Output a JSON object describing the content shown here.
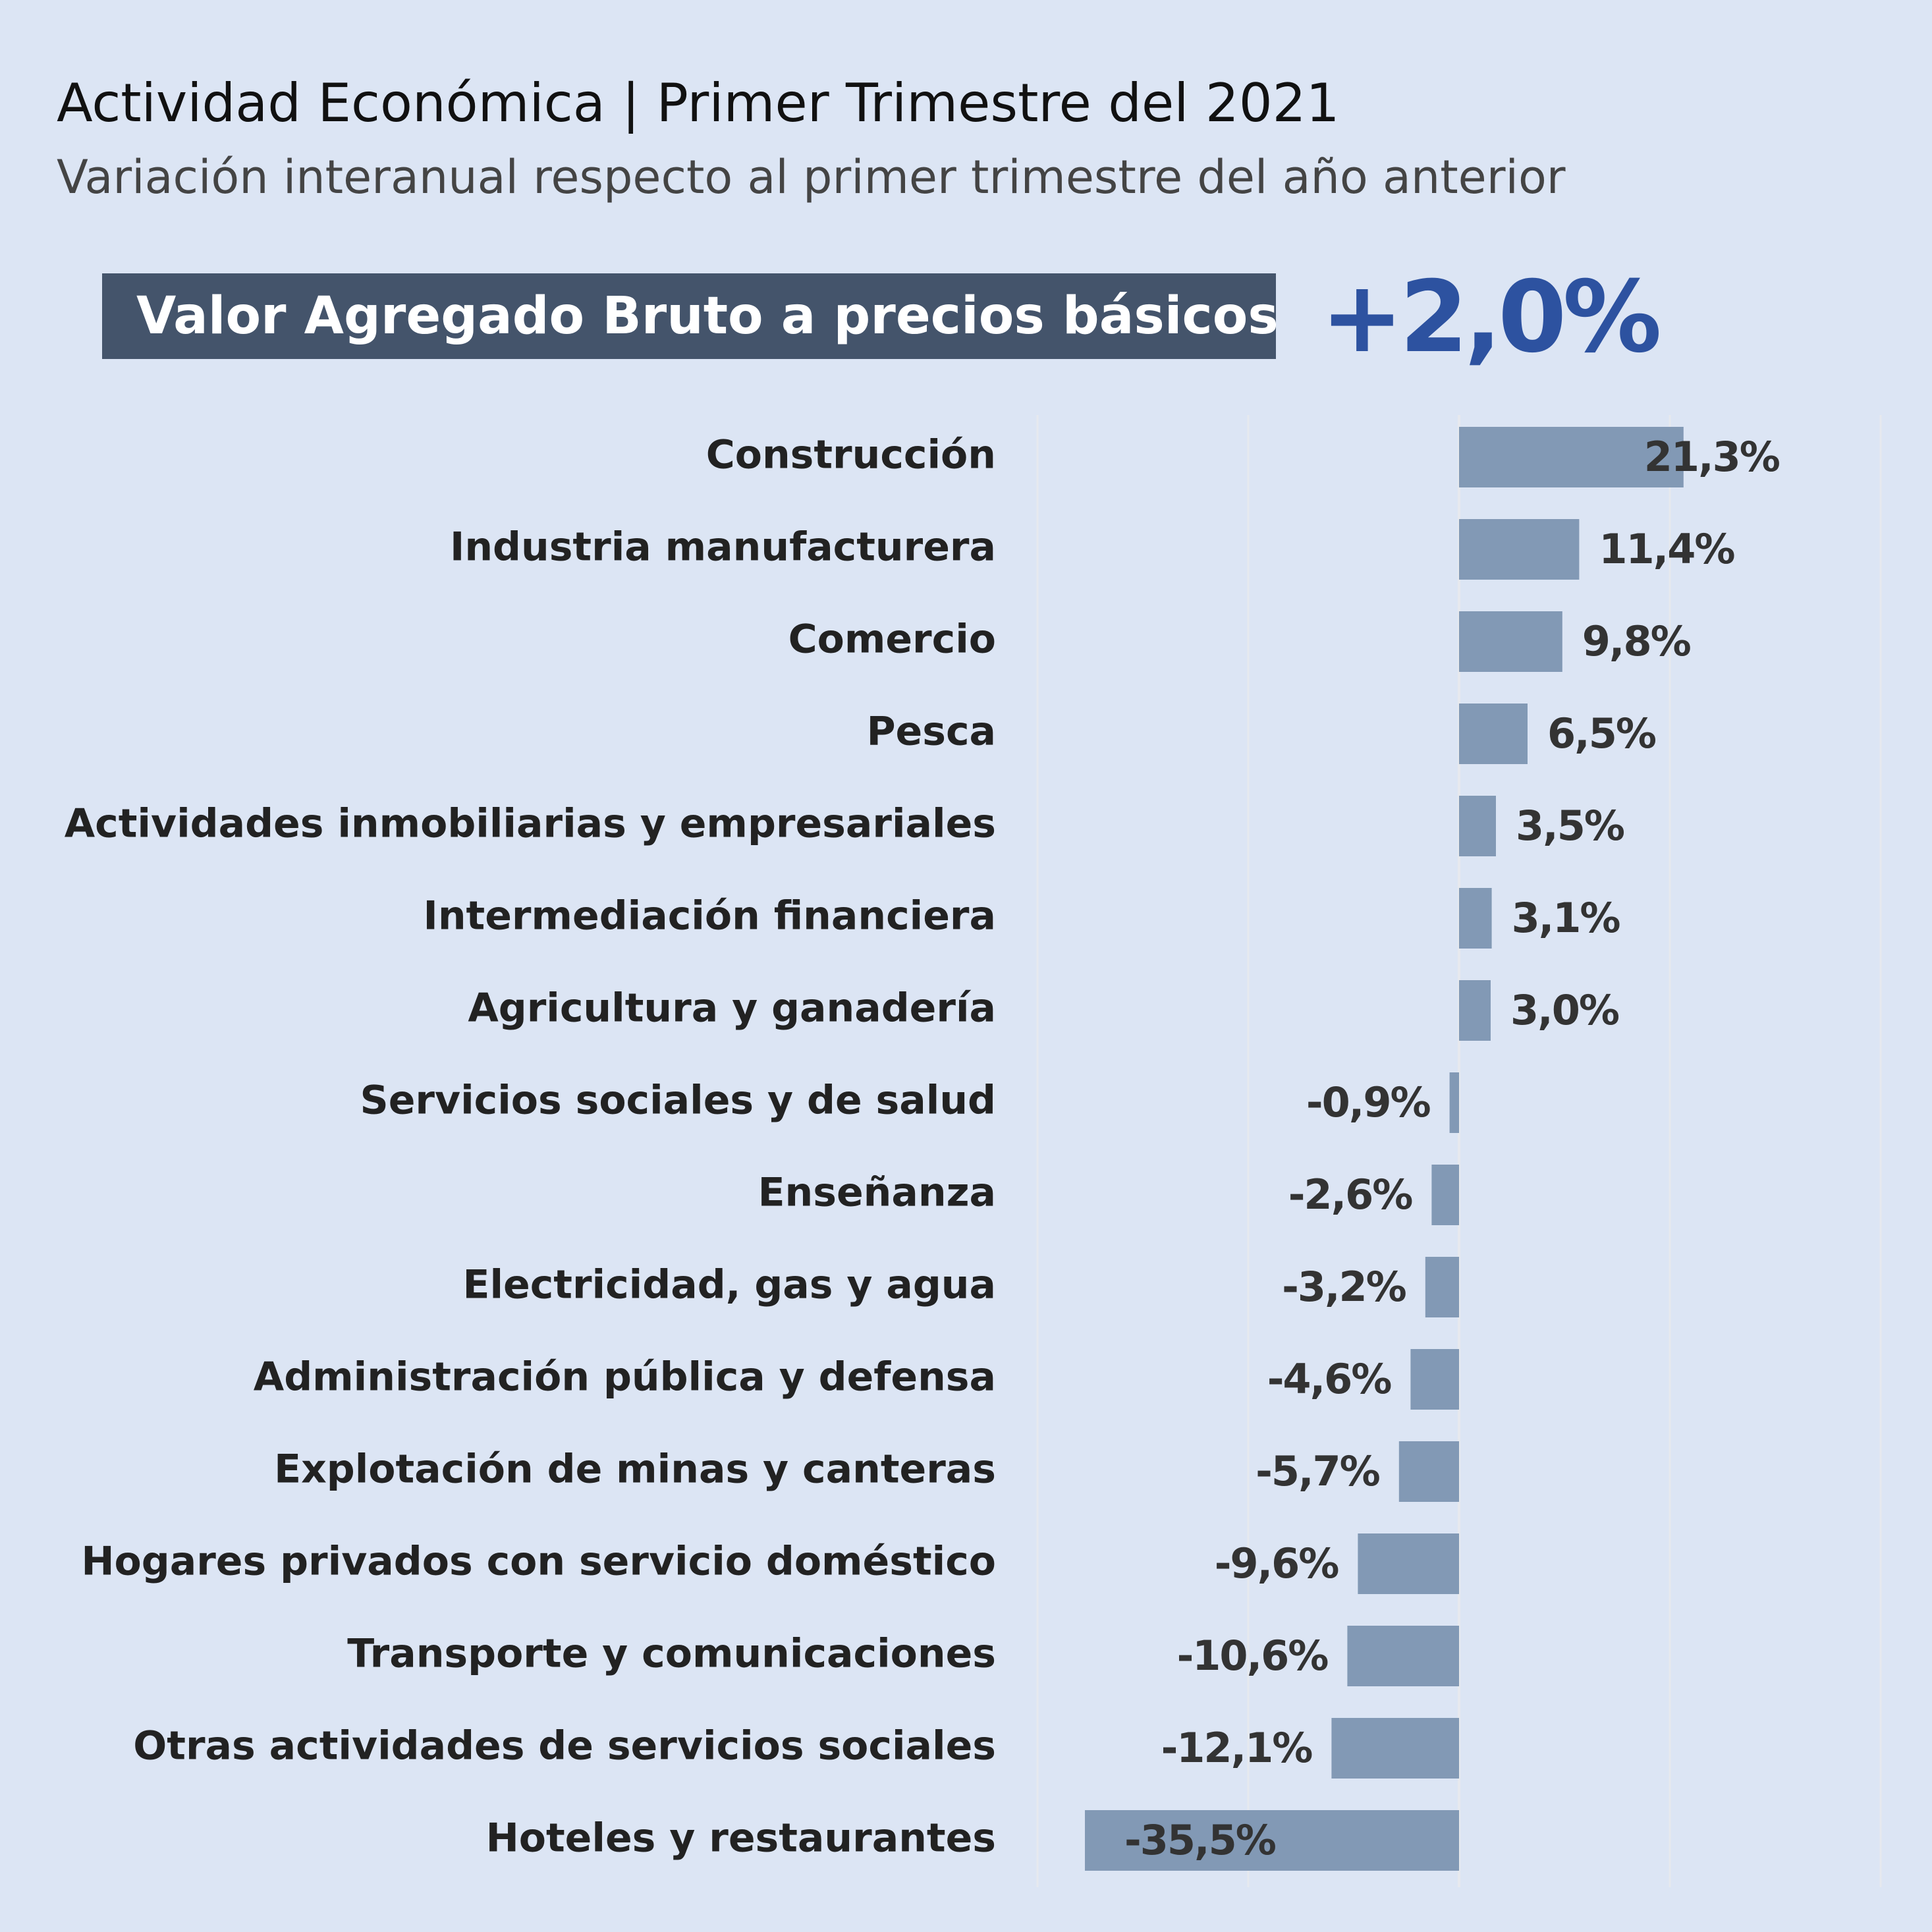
{
  "header": {
    "title": "Actividad Económica | Primer Trimestre del 2021",
    "subtitle": "Variación interanual respecto al primer trimestre del año anterior"
  },
  "highlight": {
    "label": "Valor Agregado Bruto a precios básicos",
    "value": "+2,0%"
  },
  "colors": {
    "bar": "#8299b5",
    "banner": "#44546b",
    "accent": "#2d52a0",
    "gridline": "#e6e9ee",
    "background": "#dce5f4"
  },
  "chart_data": {
    "type": "bar",
    "orientation": "horizontal",
    "categories": [
      "Construcción",
      "Industria manufacturera",
      "Comercio",
      "Pesca",
      "Actividades inmobiliarias y empresariales",
      "Intermediación financiera",
      "Agricultura y ganadería",
      "Servicios sociales y de salud",
      "Enseñanza",
      "Electricidad, gas y agua",
      "Administración pública y defensa",
      "Explotación de minas y canteras",
      "Hogares privados con servicio doméstico",
      "Transporte y comunicaciones",
      "Otras actividades de servicios sociales",
      "Hoteles y restaurantes"
    ],
    "values": [
      21.3,
      11.4,
      9.8,
      6.5,
      3.5,
      3.1,
      3.0,
      -0.9,
      -2.6,
      -3.2,
      -4.6,
      -5.7,
      -9.6,
      -10.6,
      -12.1,
      -35.5
    ],
    "value_labels": [
      "21,3%",
      "11,4%",
      "9,8%",
      "6,5%",
      "3,5%",
      "3,1%",
      "3,0%",
      "-0,9%",
      "-2,6%",
      "-3,2%",
      "-4,6%",
      "-5,7%",
      "-9,6%",
      "-10,6%",
      "-12,1%",
      "-35,5%"
    ],
    "xlim": [
      -40,
      40
    ],
    "gridlines": [
      -40,
      -20,
      0,
      20,
      40
    ],
    "grid": true,
    "legend": "none"
  }
}
